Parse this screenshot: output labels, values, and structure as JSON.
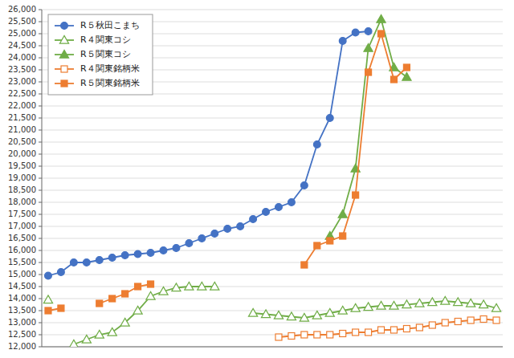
{
  "chart_data": {
    "type": "line",
    "categories": [
      null,
      null,
      null,
      null,
      null,
      null,
      null,
      null,
      null,
      null,
      null,
      null,
      null,
      null,
      null,
      null,
      null,
      null,
      null,
      null,
      null,
      null,
      null,
      null,
      null,
      null,
      null,
      null,
      null,
      null,
      null,
      null,
      null,
      null,
      null,
      null
    ],
    "series": [
      {
        "name": "R５秋田こまち",
        "color": "#4472C4",
        "marker": "circle",
        "values": [
          14950,
          15100,
          15500,
          15500,
          15600,
          15700,
          15800,
          15850,
          15900,
          16000,
          16100,
          16300,
          16500,
          16700,
          16900,
          17000,
          17300,
          17600,
          17800,
          18000,
          18700,
          20400,
          21500,
          24700,
          25050,
          25100,
          null,
          null,
          null,
          null,
          null,
          null,
          null,
          null,
          null,
          null
        ]
      },
      {
        "name": "R４関東コシ",
        "color": "#70AD47",
        "marker": "triangle-open",
        "values": [
          13950,
          null,
          12100,
          12300,
          12500,
          12600,
          13000,
          13500,
          14100,
          14300,
          14450,
          14500,
          14500,
          14500,
          null,
          null,
          13400,
          13350,
          13300,
          13250,
          13200,
          13300,
          13400,
          13500,
          13600,
          13650,
          13700,
          13700,
          13750,
          13800,
          13850,
          13900,
          13850,
          13800,
          13750,
          13600
        ]
      },
      {
        "name": "R５関東コシ",
        "color": "#70AD47",
        "marker": "triangle",
        "values": [
          null,
          null,
          null,
          null,
          null,
          null,
          null,
          null,
          null,
          null,
          null,
          null,
          null,
          null,
          null,
          null,
          null,
          null,
          null,
          null,
          null,
          null,
          16600,
          17500,
          19400,
          24400,
          25600,
          23600,
          23200,
          null,
          null,
          null,
          null,
          null,
          null,
          null
        ]
      },
      {
        "name": "R４関東銘柄米",
        "color": "#ED7D31",
        "marker": "square-open",
        "values": [
          null,
          null,
          null,
          null,
          null,
          null,
          null,
          null,
          null,
          null,
          null,
          null,
          null,
          null,
          null,
          null,
          null,
          null,
          12400,
          12450,
          12500,
          12500,
          12500,
          12550,
          12600,
          12600,
          12700,
          12700,
          12750,
          12800,
          12900,
          13000,
          13050,
          13100,
          13150,
          13100
        ]
      },
      {
        "name": "R５関東銘柄米",
        "color": "#ED7D31",
        "marker": "square",
        "values": [
          13500,
          13600,
          null,
          null,
          13800,
          14000,
          14200,
          14500,
          14600,
          null,
          null,
          null,
          null,
          null,
          null,
          null,
          null,
          null,
          null,
          null,
          15400,
          16200,
          16400,
          16600,
          18300,
          23400,
          25000,
          23100,
          23600,
          null,
          null,
          null,
          null,
          null,
          null,
          null
        ]
      }
    ],
    "ylim": [
      12000,
      26000
    ],
    "yticks": [
      {
        "value": 12000,
        "label": "12,000"
      },
      {
        "value": 12500,
        "label": "12,500"
      },
      {
        "value": 13000,
        "label": "13,000"
      },
      {
        "value": 13500,
        "label": "13,500"
      },
      {
        "value": 14000,
        "label": "14,000"
      },
      {
        "value": 14500,
        "label": "14,500"
      },
      {
        "value": 15000,
        "label": "15,000"
      },
      {
        "value": 15500,
        "label": "15,500"
      },
      {
        "value": 16000,
        "label": "16,000"
      },
      {
        "value": 16500,
        "label": "16,500"
      },
      {
        "value": 17000,
        "label": "17,000"
      },
      {
        "value": 17500,
        "label": "17,500"
      },
      {
        "value": 18000,
        "label": "18,000"
      },
      {
        "value": 18500,
        "label": "18,500"
      },
      {
        "value": 19000,
        "label": "19,000"
      },
      {
        "value": 19500,
        "label": "19,500"
      },
      {
        "value": 20000,
        "label": "20,000"
      },
      {
        "value": 20500,
        "label": "20,500"
      },
      {
        "value": 21000,
        "label": "21,000"
      },
      {
        "value": 21500,
        "label": "21,500"
      },
      {
        "value": 22000,
        "label": "22,000"
      },
      {
        "value": 22500,
        "label": "22,500"
      },
      {
        "value": 23000,
        "label": "23,000"
      },
      {
        "value": 23500,
        "label": "23,500"
      },
      {
        "value": 24000,
        "label": "24,000"
      },
      {
        "value": 24500,
        "label": "24,500"
      },
      {
        "value": 25000,
        "label": "25,000"
      },
      {
        "value": 25500,
        "label": "25,500"
      },
      {
        "value": 26000,
        "label": "26,000"
      }
    ],
    "grid": true,
    "legend": "upper left",
    "tick_labels": "y"
  }
}
